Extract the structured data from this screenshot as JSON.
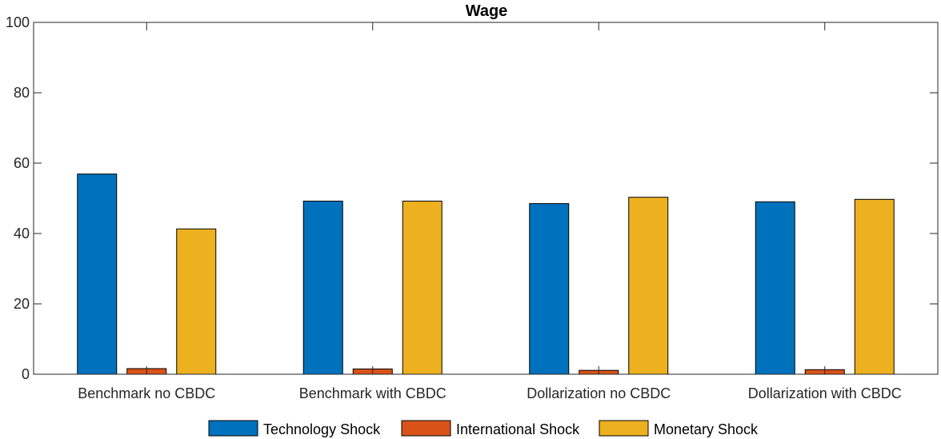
{
  "chart_data": {
    "type": "bar",
    "title": "Wage",
    "xlabel": "",
    "ylabel": "",
    "ylim": [
      0,
      100
    ],
    "yticks": [
      0,
      20,
      40,
      60,
      80,
      100
    ],
    "grid": false,
    "legend_position": "bottom",
    "categories": [
      "Benchmark no CBDC",
      "Benchmark with CBDC",
      "Dollarization no CBDC",
      "Dollarization with CBDC"
    ],
    "series": [
      {
        "name": "Technology Shock",
        "color": "#0072BD",
        "values": [
          56.9,
          49.2,
          48.5,
          49.0
        ]
      },
      {
        "name": "International Shock",
        "color": "#D95319",
        "values": [
          1.6,
          1.5,
          1.1,
          1.3
        ]
      },
      {
        "name": "Monetary Shock",
        "color": "#EDB120",
        "values": [
          41.3,
          49.2,
          50.3,
          49.7
        ]
      }
    ]
  }
}
